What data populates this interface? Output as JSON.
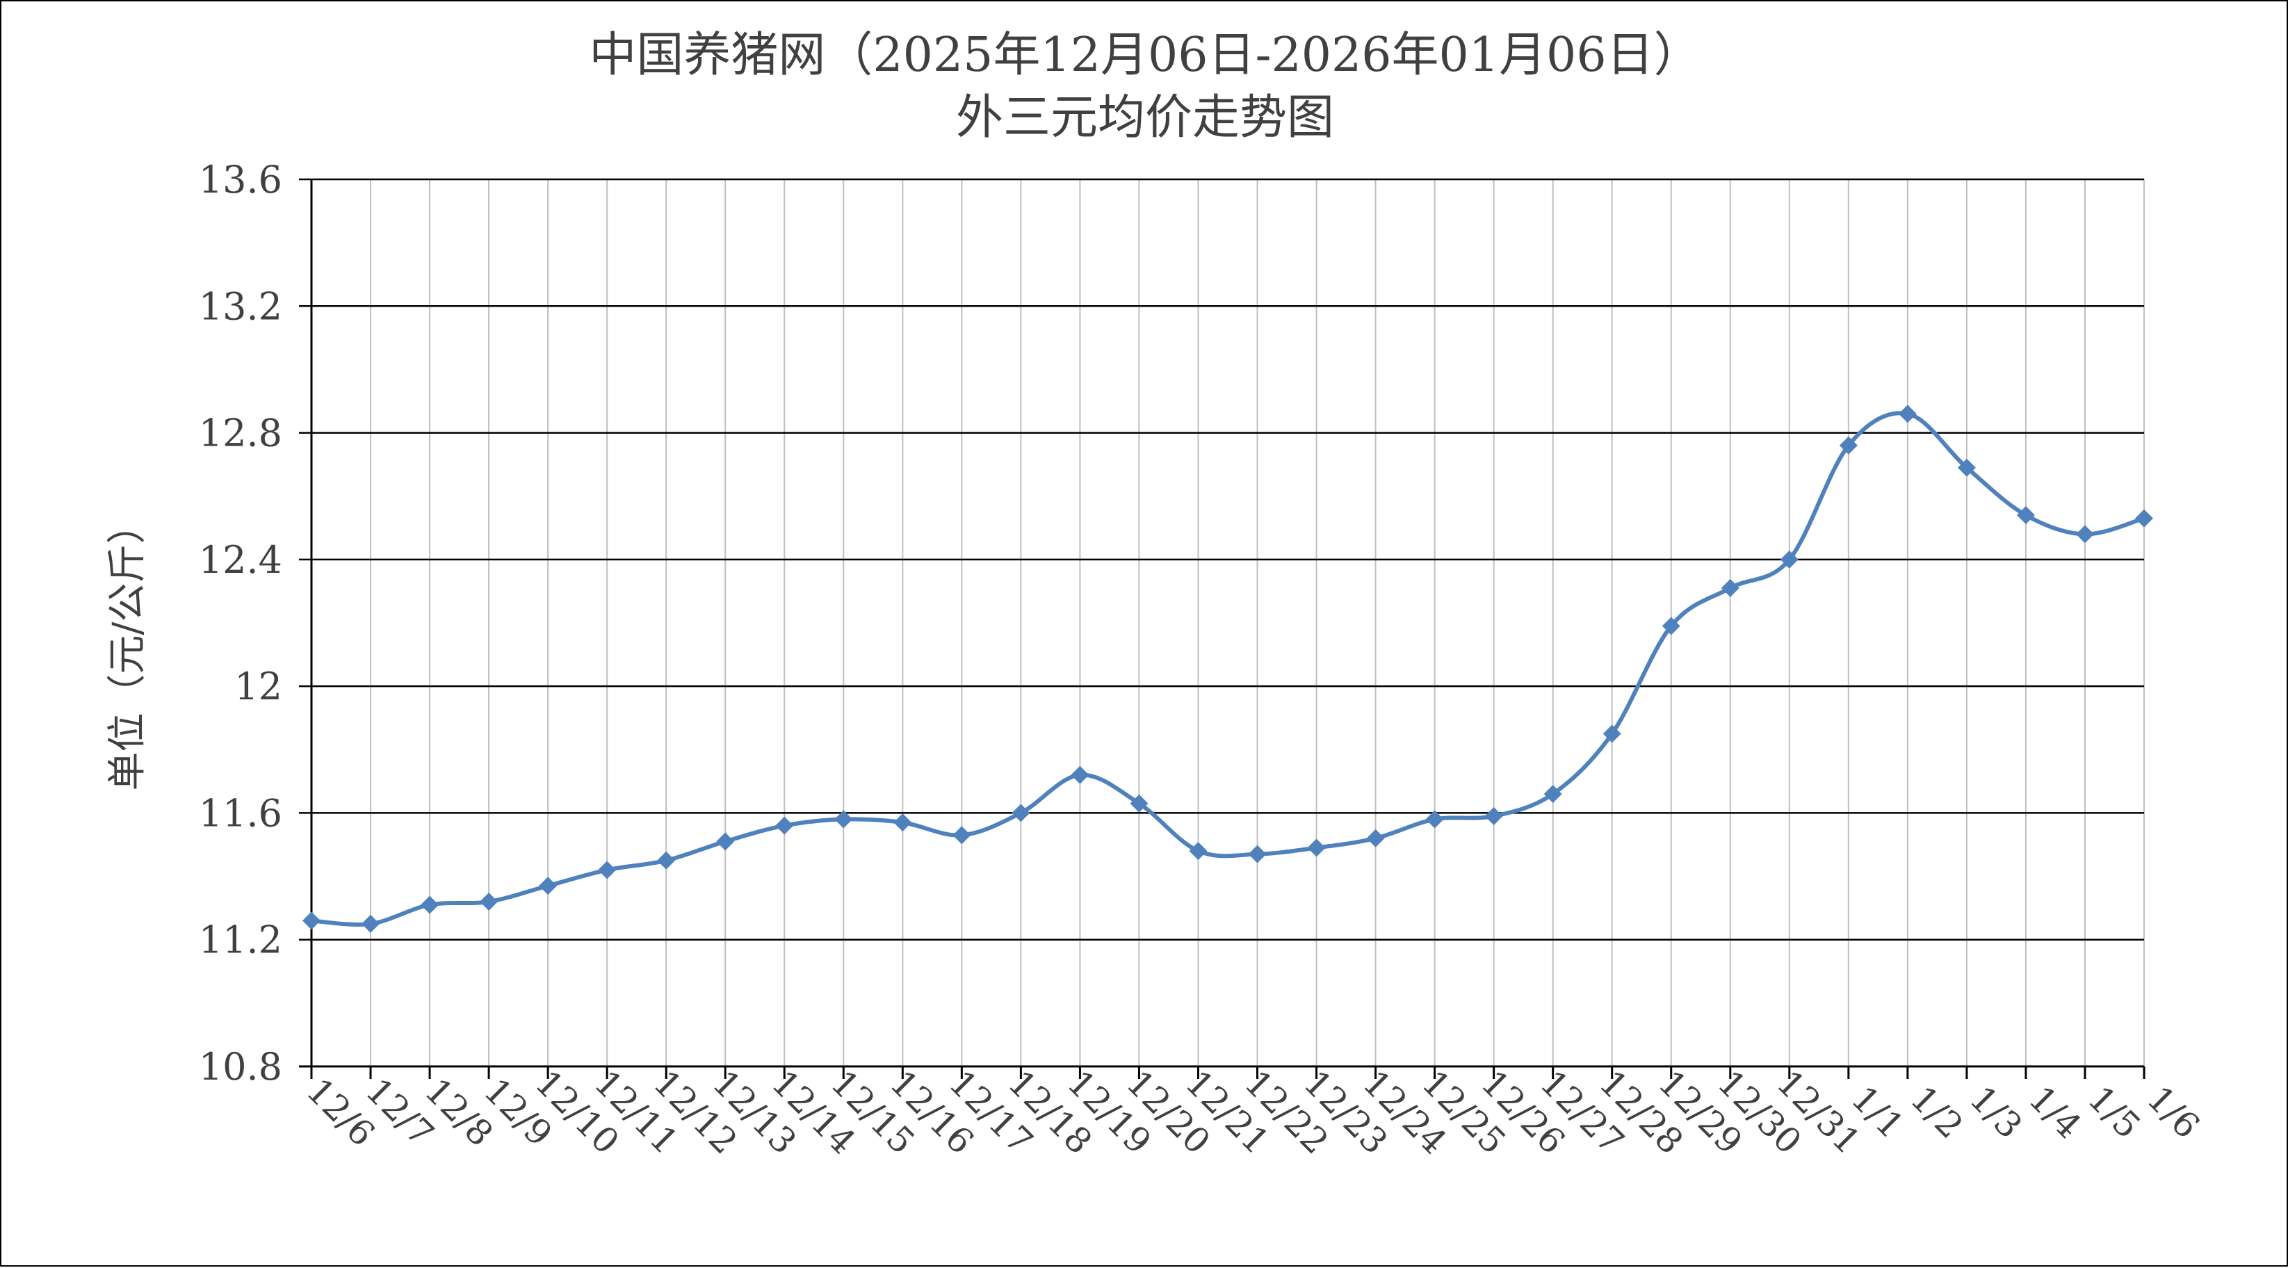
{
  "chart_data": {
    "type": "line",
    "title_line1": "中国养猪网（2025年12月06日-2026年01月06日）",
    "title_line2": "外三元均价走势图",
    "ylabel": "单位（元/公斤）",
    "xlabel": "",
    "ylim": [
      10.8,
      13.6
    ],
    "yticks": [
      "10.8",
      "11.2",
      "11.6",
      "12",
      "12.4",
      "12.8",
      "13.2",
      "13.6"
    ],
    "ytick_values": [
      10.8,
      11.2,
      11.6,
      12.0,
      12.4,
      12.8,
      13.2,
      13.6
    ],
    "categories": [
      "12/6",
      "12/7",
      "12/8",
      "12/9",
      "12/10",
      "12/11",
      "12/12",
      "12/13",
      "12/14",
      "12/15",
      "12/16",
      "12/17",
      "12/18",
      "12/19",
      "12/20",
      "12/21",
      "12/22",
      "12/23",
      "12/24",
      "12/25",
      "12/26",
      "12/27",
      "12/28",
      "12/29",
      "12/30",
      "12/31",
      "1/1",
      "1/2",
      "1/3",
      "1/4",
      "1/5",
      "1/6"
    ],
    "series": [
      {
        "values": [
          11.26,
          11.25,
          11.31,
          11.32,
          11.37,
          11.42,
          11.45,
          11.51,
          11.56,
          11.58,
          11.57,
          11.53,
          11.6,
          11.72,
          11.63,
          11.48,
          11.47,
          11.49,
          11.52,
          11.58,
          11.59,
          11.66,
          11.85,
          12.19,
          12.31,
          12.4,
          12.76,
          12.86,
          12.69,
          12.54,
          12.48,
          12.53
        ],
        "color": "#4f81bd",
        "marker": "diamond"
      }
    ],
    "grid": true,
    "legend": "none",
    "colors": {
      "horizontal_grid": "#000000",
      "vertical_grid": "#bfbfbf",
      "text": "#404040"
    }
  }
}
